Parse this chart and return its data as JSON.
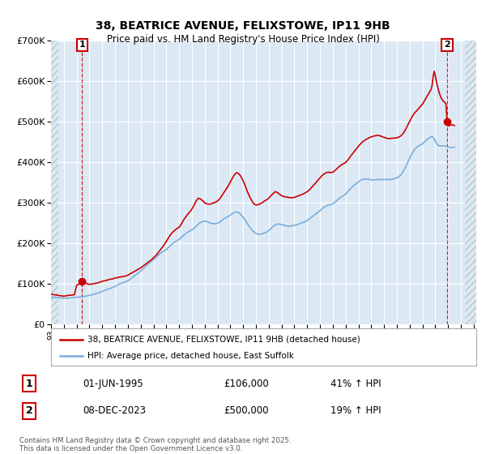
{
  "title_line1": "38, BEATRICE AVENUE, FELIXSTOWE, IP11 9HB",
  "title_line2": "Price paid vs. HM Land Registry's House Price Index (HPI)",
  "background_color": "#ffffff",
  "plot_bg_color": "#dce9f5",
  "grid_color": "#ffffff",
  "red_line_color": "#cc0000",
  "blue_line_color": "#7aaddc",
  "hatch_fill_color": "#dde8f0",
  "annotation1_date": "01-JUN-1995",
  "annotation1_price": "£106,000",
  "annotation1_hpi": "41% ↑ HPI",
  "annotation2_date": "08-DEC-2023",
  "annotation2_price": "£500,000",
  "annotation2_hpi": "19% ↑ HPI",
  "legend_line1": "38, BEATRICE AVENUE, FELIXSTOWE, IP11 9HB (detached house)",
  "legend_line2": "HPI: Average price, detached house, East Suffolk",
  "footer": "Contains HM Land Registry data © Crown copyright and database right 2025.\nThis data is licensed under the Open Government Licence v3.0.",
  "ylim": [
    0,
    700000
  ],
  "xlim_start": 1993.0,
  "xlim_end": 2026.2,
  "data_end": 2025.5,
  "marker1_x": 1995.42,
  "marker1_y": 106000,
  "marker2_x": 2023.93,
  "marker2_y": 500000,
  "red_line_data": [
    [
      1993.0,
      75000
    ],
    [
      1993.17,
      74000
    ],
    [
      1993.33,
      73500
    ],
    [
      1993.5,
      72500
    ],
    [
      1993.67,
      71500
    ],
    [
      1993.83,
      71000
    ],
    [
      1994.0,
      70000
    ],
    [
      1994.17,
      71000
    ],
    [
      1994.33,
      72000
    ],
    [
      1994.5,
      72500
    ],
    [
      1994.67,
      73000
    ],
    [
      1994.83,
      74000
    ],
    [
      1995.0,
      97000
    ],
    [
      1995.17,
      100000
    ],
    [
      1995.33,
      103000
    ],
    [
      1995.42,
      106000
    ],
    [
      1995.5,
      105000
    ],
    [
      1995.67,
      103000
    ],
    [
      1995.83,
      101000
    ],
    [
      1996.0,
      99000
    ],
    [
      1996.17,
      100000
    ],
    [
      1996.33,
      101000
    ],
    [
      1996.5,
      102000
    ],
    [
      1996.67,
      103000
    ],
    [
      1996.83,
      105000
    ],
    [
      1997.0,
      107000
    ],
    [
      1997.17,
      108000
    ],
    [
      1997.33,
      109000
    ],
    [
      1997.5,
      111000
    ],
    [
      1997.67,
      112000
    ],
    [
      1997.83,
      113000
    ],
    [
      1998.0,
      115000
    ],
    [
      1998.17,
      116000
    ],
    [
      1998.33,
      117000
    ],
    [
      1998.5,
      118000
    ],
    [
      1998.67,
      119000
    ],
    [
      1998.83,
      120000
    ],
    [
      1999.0,
      122000
    ],
    [
      1999.17,
      125000
    ],
    [
      1999.33,
      128000
    ],
    [
      1999.5,
      131000
    ],
    [
      1999.67,
      134000
    ],
    [
      1999.83,
      137000
    ],
    [
      2000.0,
      140000
    ],
    [
      2000.17,
      144000
    ],
    [
      2000.33,
      148000
    ],
    [
      2000.5,
      152000
    ],
    [
      2000.67,
      156000
    ],
    [
      2000.83,
      160000
    ],
    [
      2001.0,
      165000
    ],
    [
      2001.17,
      170000
    ],
    [
      2001.33,
      176000
    ],
    [
      2001.5,
      183000
    ],
    [
      2001.67,
      190000
    ],
    [
      2001.83,
      197000
    ],
    [
      2002.0,
      205000
    ],
    [
      2002.17,
      214000
    ],
    [
      2002.33,
      222000
    ],
    [
      2002.5,
      228000
    ],
    [
      2002.67,
      233000
    ],
    [
      2002.83,
      237000
    ],
    [
      2003.0,
      240000
    ],
    [
      2003.17,
      248000
    ],
    [
      2003.33,
      257000
    ],
    [
      2003.5,
      265000
    ],
    [
      2003.67,
      272000
    ],
    [
      2003.83,
      278000
    ],
    [
      2004.0,
      285000
    ],
    [
      2004.17,
      295000
    ],
    [
      2004.33,
      305000
    ],
    [
      2004.5,
      312000
    ],
    [
      2004.67,
      310000
    ],
    [
      2004.83,
      306000
    ],
    [
      2005.0,
      300000
    ],
    [
      2005.17,
      298000
    ],
    [
      2005.33,
      297000
    ],
    [
      2005.5,
      298000
    ],
    [
      2005.67,
      300000
    ],
    [
      2005.83,
      302000
    ],
    [
      2006.0,
      305000
    ],
    [
      2006.17,
      310000
    ],
    [
      2006.33,
      318000
    ],
    [
      2006.5,
      326000
    ],
    [
      2006.67,
      334000
    ],
    [
      2006.83,
      342000
    ],
    [
      2007.0,
      352000
    ],
    [
      2007.17,
      362000
    ],
    [
      2007.33,
      370000
    ],
    [
      2007.5,
      375000
    ],
    [
      2007.67,
      372000
    ],
    [
      2007.83,
      365000
    ],
    [
      2008.0,
      355000
    ],
    [
      2008.17,
      342000
    ],
    [
      2008.33,
      328000
    ],
    [
      2008.5,
      316000
    ],
    [
      2008.67,
      306000
    ],
    [
      2008.83,
      298000
    ],
    [
      2009.0,
      295000
    ],
    [
      2009.17,
      296000
    ],
    [
      2009.33,
      298000
    ],
    [
      2009.5,
      301000
    ],
    [
      2009.67,
      305000
    ],
    [
      2009.83,
      308000
    ],
    [
      2010.0,
      312000
    ],
    [
      2010.17,
      318000
    ],
    [
      2010.33,
      323000
    ],
    [
      2010.5,
      328000
    ],
    [
      2010.67,
      326000
    ],
    [
      2010.83,
      322000
    ],
    [
      2011.0,
      318000
    ],
    [
      2011.17,
      316000
    ],
    [
      2011.33,
      315000
    ],
    [
      2011.5,
      314000
    ],
    [
      2011.67,
      313000
    ],
    [
      2011.83,
      313000
    ],
    [
      2012.0,
      314000
    ],
    [
      2012.17,
      316000
    ],
    [
      2012.33,
      318000
    ],
    [
      2012.5,
      320000
    ],
    [
      2012.67,
      322000
    ],
    [
      2012.83,
      325000
    ],
    [
      2013.0,
      328000
    ],
    [
      2013.17,
      332000
    ],
    [
      2013.33,
      338000
    ],
    [
      2013.5,
      344000
    ],
    [
      2013.67,
      350000
    ],
    [
      2013.83,
      356000
    ],
    [
      2014.0,
      362000
    ],
    [
      2014.17,
      368000
    ],
    [
      2014.33,
      372000
    ],
    [
      2014.5,
      375000
    ],
    [
      2014.67,
      376000
    ],
    [
      2014.83,
      375000
    ],
    [
      2015.0,
      376000
    ],
    [
      2015.17,
      380000
    ],
    [
      2015.33,
      385000
    ],
    [
      2015.5,
      390000
    ],
    [
      2015.67,
      394000
    ],
    [
      2015.83,
      397000
    ],
    [
      2016.0,
      400000
    ],
    [
      2016.17,
      406000
    ],
    [
      2016.33,
      413000
    ],
    [
      2016.5,
      420000
    ],
    [
      2016.67,
      427000
    ],
    [
      2016.83,
      433000
    ],
    [
      2017.0,
      440000
    ],
    [
      2017.17,
      446000
    ],
    [
      2017.33,
      451000
    ],
    [
      2017.5,
      455000
    ],
    [
      2017.67,
      458000
    ],
    [
      2017.83,
      461000
    ],
    [
      2018.0,
      463000
    ],
    [
      2018.17,
      465000
    ],
    [
      2018.33,
      466000
    ],
    [
      2018.5,
      467000
    ],
    [
      2018.67,
      466000
    ],
    [
      2018.83,
      464000
    ],
    [
      2019.0,
      462000
    ],
    [
      2019.17,
      460000
    ],
    [
      2019.33,
      459000
    ],
    [
      2019.5,
      459000
    ],
    [
      2019.67,
      460000
    ],
    [
      2019.83,
      460000
    ],
    [
      2020.0,
      461000
    ],
    [
      2020.17,
      463000
    ],
    [
      2020.33,
      466000
    ],
    [
      2020.5,
      472000
    ],
    [
      2020.67,
      481000
    ],
    [
      2020.83,
      491000
    ],
    [
      2021.0,
      502000
    ],
    [
      2021.17,
      512000
    ],
    [
      2021.33,
      520000
    ],
    [
      2021.5,
      526000
    ],
    [
      2021.67,
      532000
    ],
    [
      2021.83,
      538000
    ],
    [
      2022.0,
      544000
    ],
    [
      2022.17,
      553000
    ],
    [
      2022.33,
      562000
    ],
    [
      2022.5,
      571000
    ],
    [
      2022.67,
      580000
    ],
    [
      2022.75,
      590000
    ],
    [
      2022.83,
      612000
    ],
    [
      2022.92,
      625000
    ],
    [
      2023.0,
      615000
    ],
    [
      2023.08,
      600000
    ],
    [
      2023.17,
      588000
    ],
    [
      2023.25,
      578000
    ],
    [
      2023.33,
      570000
    ],
    [
      2023.42,
      562000
    ],
    [
      2023.5,
      557000
    ],
    [
      2023.58,
      553000
    ],
    [
      2023.67,
      550000
    ],
    [
      2023.75,
      548000
    ],
    [
      2023.83,
      545000
    ],
    [
      2023.93,
      500000
    ],
    [
      2024.0,
      490000
    ],
    [
      2024.17,
      492000
    ],
    [
      2024.33,
      493000
    ],
    [
      2024.5,
      491000
    ]
  ],
  "blue_line_data": [
    [
      1993.0,
      68000
    ],
    [
      1993.17,
      67500
    ],
    [
      1993.33,
      67000
    ],
    [
      1993.5,
      66500
    ],
    [
      1993.67,
      66000
    ],
    [
      1993.83,
      65500
    ],
    [
      1994.0,
      65000
    ],
    [
      1994.17,
      65200
    ],
    [
      1994.33,
      65500
    ],
    [
      1994.5,
      66000
    ],
    [
      1994.67,
      66500
    ],
    [
      1994.83,
      67000
    ],
    [
      1995.0,
      67500
    ],
    [
      1995.17,
      68000
    ],
    [
      1995.33,
      68500
    ],
    [
      1995.5,
      69000
    ],
    [
      1995.67,
      70000
    ],
    [
      1995.83,
      71000
    ],
    [
      1996.0,
      72000
    ],
    [
      1996.17,
      73500
    ],
    [
      1996.33,
      75000
    ],
    [
      1996.5,
      76500
    ],
    [
      1996.67,
      78000
    ],
    [
      1996.83,
      80000
    ],
    [
      1997.0,
      82000
    ],
    [
      1997.17,
      84000
    ],
    [
      1997.33,
      86000
    ],
    [
      1997.5,
      88000
    ],
    [
      1997.67,
      90000
    ],
    [
      1997.83,
      92000
    ],
    [
      1998.0,
      94000
    ],
    [
      1998.17,
      97000
    ],
    [
      1998.33,
      100000
    ],
    [
      1998.5,
      102000
    ],
    [
      1998.67,
      104000
    ],
    [
      1998.83,
      106000
    ],
    [
      1999.0,
      108000
    ],
    [
      1999.17,
      112000
    ],
    [
      1999.33,
      116000
    ],
    [
      1999.5,
      120000
    ],
    [
      1999.67,
      124000
    ],
    [
      1999.83,
      128000
    ],
    [
      2000.0,
      132000
    ],
    [
      2000.17,
      137000
    ],
    [
      2000.33,
      142000
    ],
    [
      2000.5,
      147000
    ],
    [
      2000.67,
      152000
    ],
    [
      2000.83,
      156000
    ],
    [
      2001.0,
      160000
    ],
    [
      2001.17,
      165000
    ],
    [
      2001.33,
      170000
    ],
    [
      2001.5,
      175000
    ],
    [
      2001.67,
      179000
    ],
    [
      2001.83,
      182000
    ],
    [
      2002.0,
      185000
    ],
    [
      2002.17,
      190000
    ],
    [
      2002.33,
      195000
    ],
    [
      2002.5,
      200000
    ],
    [
      2002.67,
      204000
    ],
    [
      2002.83,
      207000
    ],
    [
      2003.0,
      210000
    ],
    [
      2003.17,
      215000
    ],
    [
      2003.33,
      220000
    ],
    [
      2003.5,
      224000
    ],
    [
      2003.67,
      228000
    ],
    [
      2003.83,
      231000
    ],
    [
      2004.0,
      234000
    ],
    [
      2004.17,
      238000
    ],
    [
      2004.33,
      243000
    ],
    [
      2004.5,
      248000
    ],
    [
      2004.67,
      252000
    ],
    [
      2004.83,
      254000
    ],
    [
      2005.0,
      255000
    ],
    [
      2005.17,
      254000
    ],
    [
      2005.33,
      252000
    ],
    [
      2005.5,
      250000
    ],
    [
      2005.67,
      249000
    ],
    [
      2005.83,
      249000
    ],
    [
      2006.0,
      250000
    ],
    [
      2006.17,
      253000
    ],
    [
      2006.33,
      257000
    ],
    [
      2006.5,
      261000
    ],
    [
      2006.67,
      264000
    ],
    [
      2006.83,
      267000
    ],
    [
      2007.0,
      270000
    ],
    [
      2007.17,
      274000
    ],
    [
      2007.33,
      277000
    ],
    [
      2007.5,
      278000
    ],
    [
      2007.67,
      276000
    ],
    [
      2007.83,
      271000
    ],
    [
      2008.0,
      265000
    ],
    [
      2008.17,
      257000
    ],
    [
      2008.33,
      249000
    ],
    [
      2008.5,
      241000
    ],
    [
      2008.67,
      234000
    ],
    [
      2008.83,
      229000
    ],
    [
      2009.0,
      225000
    ],
    [
      2009.17,
      223000
    ],
    [
      2009.33,
      223000
    ],
    [
      2009.5,
      224000
    ],
    [
      2009.67,
      226000
    ],
    [
      2009.83,
      228000
    ],
    [
      2010.0,
      232000
    ],
    [
      2010.17,
      237000
    ],
    [
      2010.33,
      242000
    ],
    [
      2010.5,
      246000
    ],
    [
      2010.67,
      248000
    ],
    [
      2010.83,
      248000
    ],
    [
      2011.0,
      247000
    ],
    [
      2011.17,
      245000
    ],
    [
      2011.33,
      244000
    ],
    [
      2011.5,
      243000
    ],
    [
      2011.67,
      243000
    ],
    [
      2011.83,
      244000
    ],
    [
      2012.0,
      245000
    ],
    [
      2012.17,
      246000
    ],
    [
      2012.33,
      248000
    ],
    [
      2012.5,
      250000
    ],
    [
      2012.67,
      252000
    ],
    [
      2012.83,
      254000
    ],
    [
      2013.0,
      257000
    ],
    [
      2013.17,
      261000
    ],
    [
      2013.33,
      265000
    ],
    [
      2013.5,
      269000
    ],
    [
      2013.67,
      273000
    ],
    [
      2013.83,
      277000
    ],
    [
      2014.0,
      281000
    ],
    [
      2014.17,
      286000
    ],
    [
      2014.33,
      290000
    ],
    [
      2014.5,
      293000
    ],
    [
      2014.67,
      295000
    ],
    [
      2014.83,
      296000
    ],
    [
      2015.0,
      298000
    ],
    [
      2015.17,
      302000
    ],
    [
      2015.33,
      307000
    ],
    [
      2015.5,
      311000
    ],
    [
      2015.67,
      315000
    ],
    [
      2015.83,
      318000
    ],
    [
      2016.0,
      322000
    ],
    [
      2016.17,
      328000
    ],
    [
      2016.33,
      334000
    ],
    [
      2016.5,
      339000
    ],
    [
      2016.67,
      344000
    ],
    [
      2016.83,
      348000
    ],
    [
      2017.0,
      352000
    ],
    [
      2017.17,
      356000
    ],
    [
      2017.33,
      358000
    ],
    [
      2017.5,
      359000
    ],
    [
      2017.67,
      359000
    ],
    [
      2017.83,
      358000
    ],
    [
      2018.0,
      357000
    ],
    [
      2018.17,
      357000
    ],
    [
      2018.33,
      357000
    ],
    [
      2018.5,
      358000
    ],
    [
      2018.67,
      358000
    ],
    [
      2018.83,
      358000
    ],
    [
      2019.0,
      358000
    ],
    [
      2019.17,
      358000
    ],
    [
      2019.33,
      358000
    ],
    [
      2019.5,
      358000
    ],
    [
      2019.67,
      359000
    ],
    [
      2019.83,
      360000
    ],
    [
      2020.0,
      362000
    ],
    [
      2020.17,
      365000
    ],
    [
      2020.33,
      370000
    ],
    [
      2020.5,
      378000
    ],
    [
      2020.67,
      388000
    ],
    [
      2020.83,
      399000
    ],
    [
      2021.0,
      411000
    ],
    [
      2021.17,
      422000
    ],
    [
      2021.33,
      430000
    ],
    [
      2021.5,
      436000
    ],
    [
      2021.67,
      440000
    ],
    [
      2021.83,
      443000
    ],
    [
      2022.0,
      446000
    ],
    [
      2022.17,
      451000
    ],
    [
      2022.33,
      456000
    ],
    [
      2022.5,
      460000
    ],
    [
      2022.67,
      463000
    ],
    [
      2022.75,
      464000
    ],
    [
      2022.83,
      462000
    ],
    [
      2022.92,
      458000
    ],
    [
      2023.0,
      453000
    ],
    [
      2023.08,
      448000
    ],
    [
      2023.17,
      444000
    ],
    [
      2023.25,
      442000
    ],
    [
      2023.33,
      441000
    ],
    [
      2023.42,
      441000
    ],
    [
      2023.5,
      441000
    ],
    [
      2023.58,
      441000
    ],
    [
      2023.67,
      441000
    ],
    [
      2023.75,
      441000
    ],
    [
      2023.83,
      440000
    ],
    [
      2023.93,
      439000
    ],
    [
      2024.0,
      438000
    ],
    [
      2024.17,
      437000
    ],
    [
      2024.33,
      437000
    ],
    [
      2024.5,
      438000
    ]
  ]
}
